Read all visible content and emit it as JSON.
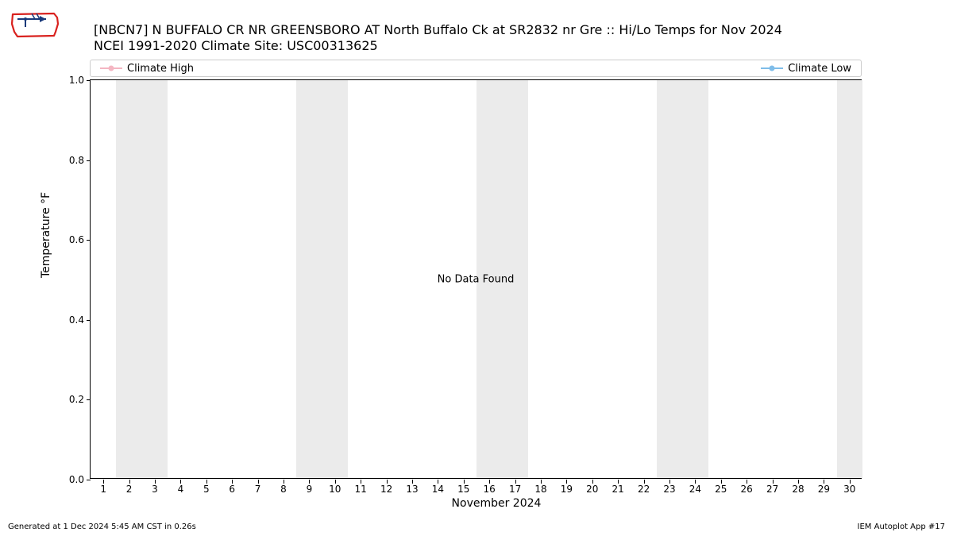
{
  "title": {
    "line1": "[NBCN7] N BUFFALO CR NR GREENSBORO  AT North Buffalo Ck at SR2832 nr Gre :: Hi/Lo Temps for Nov 2024",
    "line2": "NCEI 1991-2020 Climate Site: USC00313625"
  },
  "legend": {
    "high": {
      "label": "Climate High",
      "color": "#f4b6c2"
    },
    "low": {
      "label": "Climate Low",
      "color": "#7fbde9"
    }
  },
  "chart": {
    "type": "line",
    "background_color": "#ffffff",
    "band_color": "#ebebeb",
    "ylabel": "Temperature °F",
    "xlabel": "November 2024",
    "center_text": "No Data Found",
    "ylim": [
      0.0,
      1.0
    ],
    "yticks": [
      0.0,
      0.2,
      0.4,
      0.6,
      0.8,
      1.0
    ],
    "ytick_labels": [
      "0.0",
      "0.2",
      "0.4",
      "0.6",
      "0.8",
      "1.0"
    ],
    "xdays": [
      1,
      2,
      3,
      4,
      5,
      6,
      7,
      8,
      9,
      10,
      11,
      12,
      13,
      14,
      15,
      16,
      17,
      18,
      19,
      20,
      21,
      22,
      23,
      24,
      25,
      26,
      27,
      28,
      29,
      30
    ],
    "weekend_bands": [
      [
        2,
        3
      ],
      [
        9,
        10
      ],
      [
        16,
        17
      ],
      [
        23,
        24
      ],
      [
        30,
        30
      ]
    ],
    "tick_fontsize": 12,
    "label_fontsize": 14,
    "title_fontsize": 16
  },
  "footer": {
    "left": "Generated at 1 Dec 2024 5:45 AM CST in 0.26s",
    "right": "IEM Autoplot App #17"
  },
  "logo": {
    "outline_color": "#d9221f",
    "compass_color": "#1a3a7a"
  }
}
